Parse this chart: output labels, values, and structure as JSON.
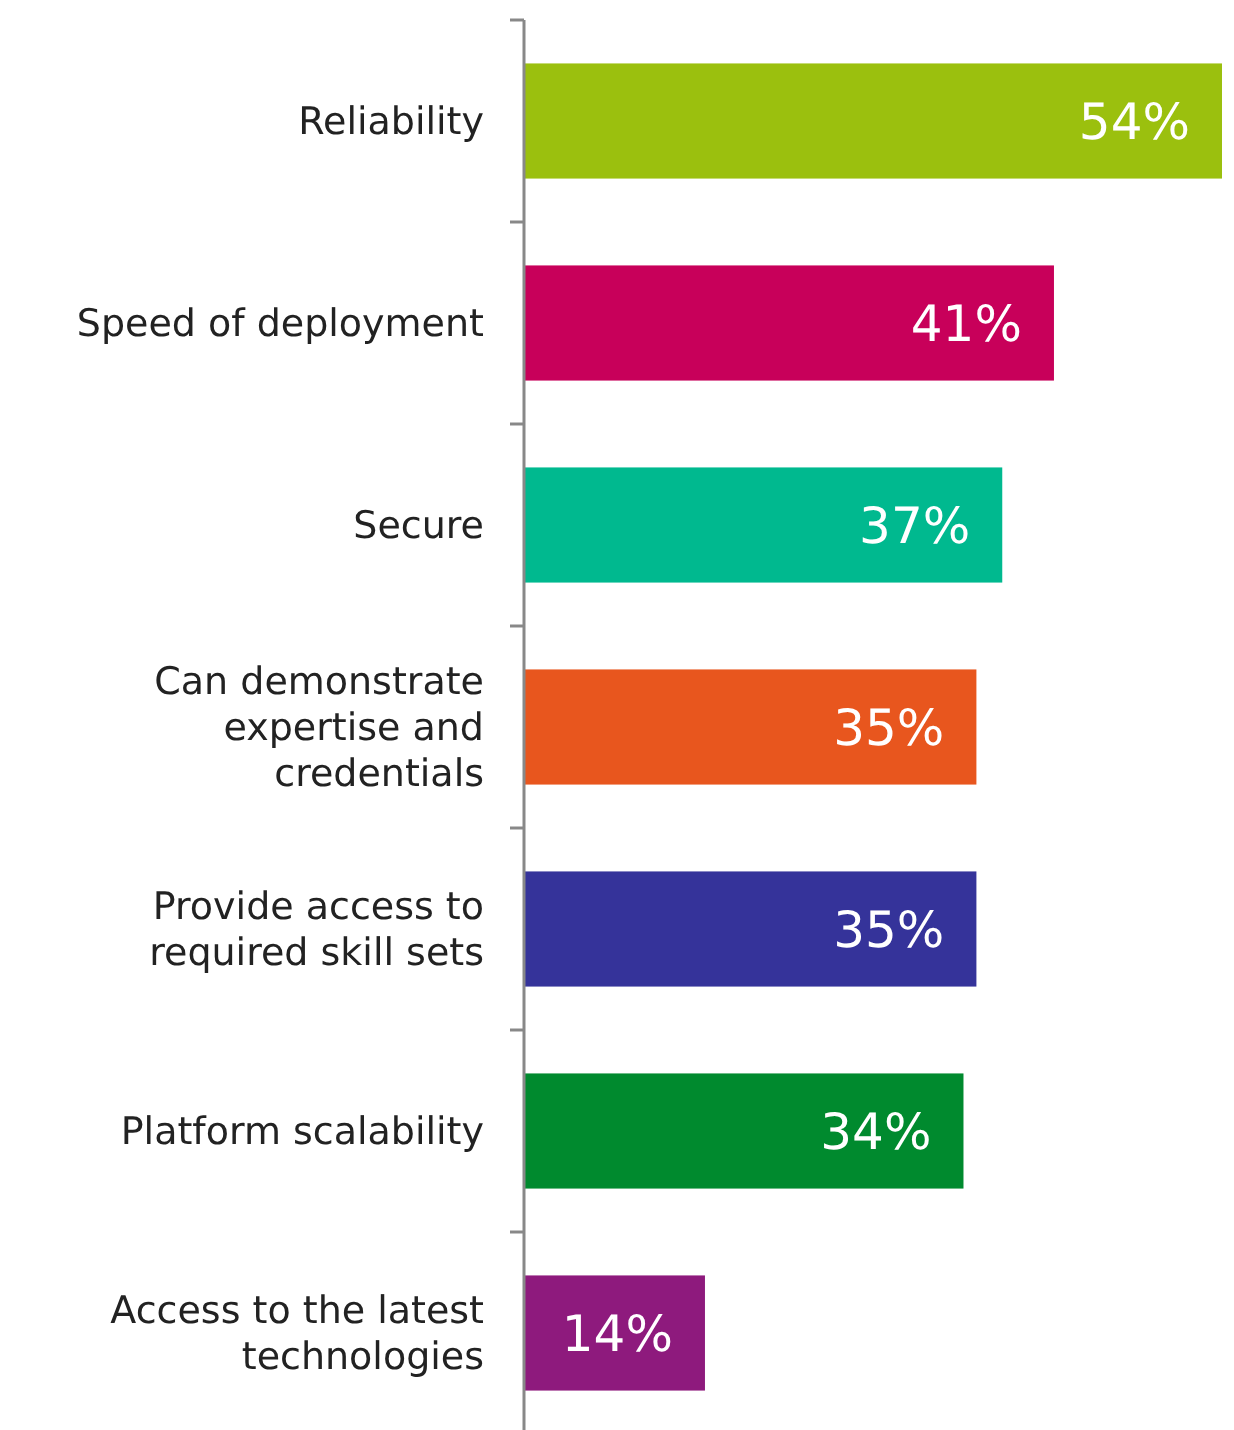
{
  "chart_data": {
    "type": "bar",
    "orientation": "horizontal",
    "data_labels": true,
    "categories": [
      "Reliability",
      "Speed of deployment",
      "Secure",
      "Can demonstrate expertise and credentials",
      "Provide access to required skill sets",
      "Platform scalability",
      "Access to the latest technologies"
    ],
    "values": [
      54,
      41,
      37,
      35,
      35,
      34,
      14
    ],
    "value_labels": [
      "54%",
      "41%",
      "37%",
      "35%",
      "35%",
      "34%",
      "14%"
    ],
    "colors": [
      "#9bc00e",
      "#c8005a",
      "#00b98f",
      "#e8561e",
      "#35339a",
      "#008a2e",
      "#8e1a7d"
    ]
  }
}
